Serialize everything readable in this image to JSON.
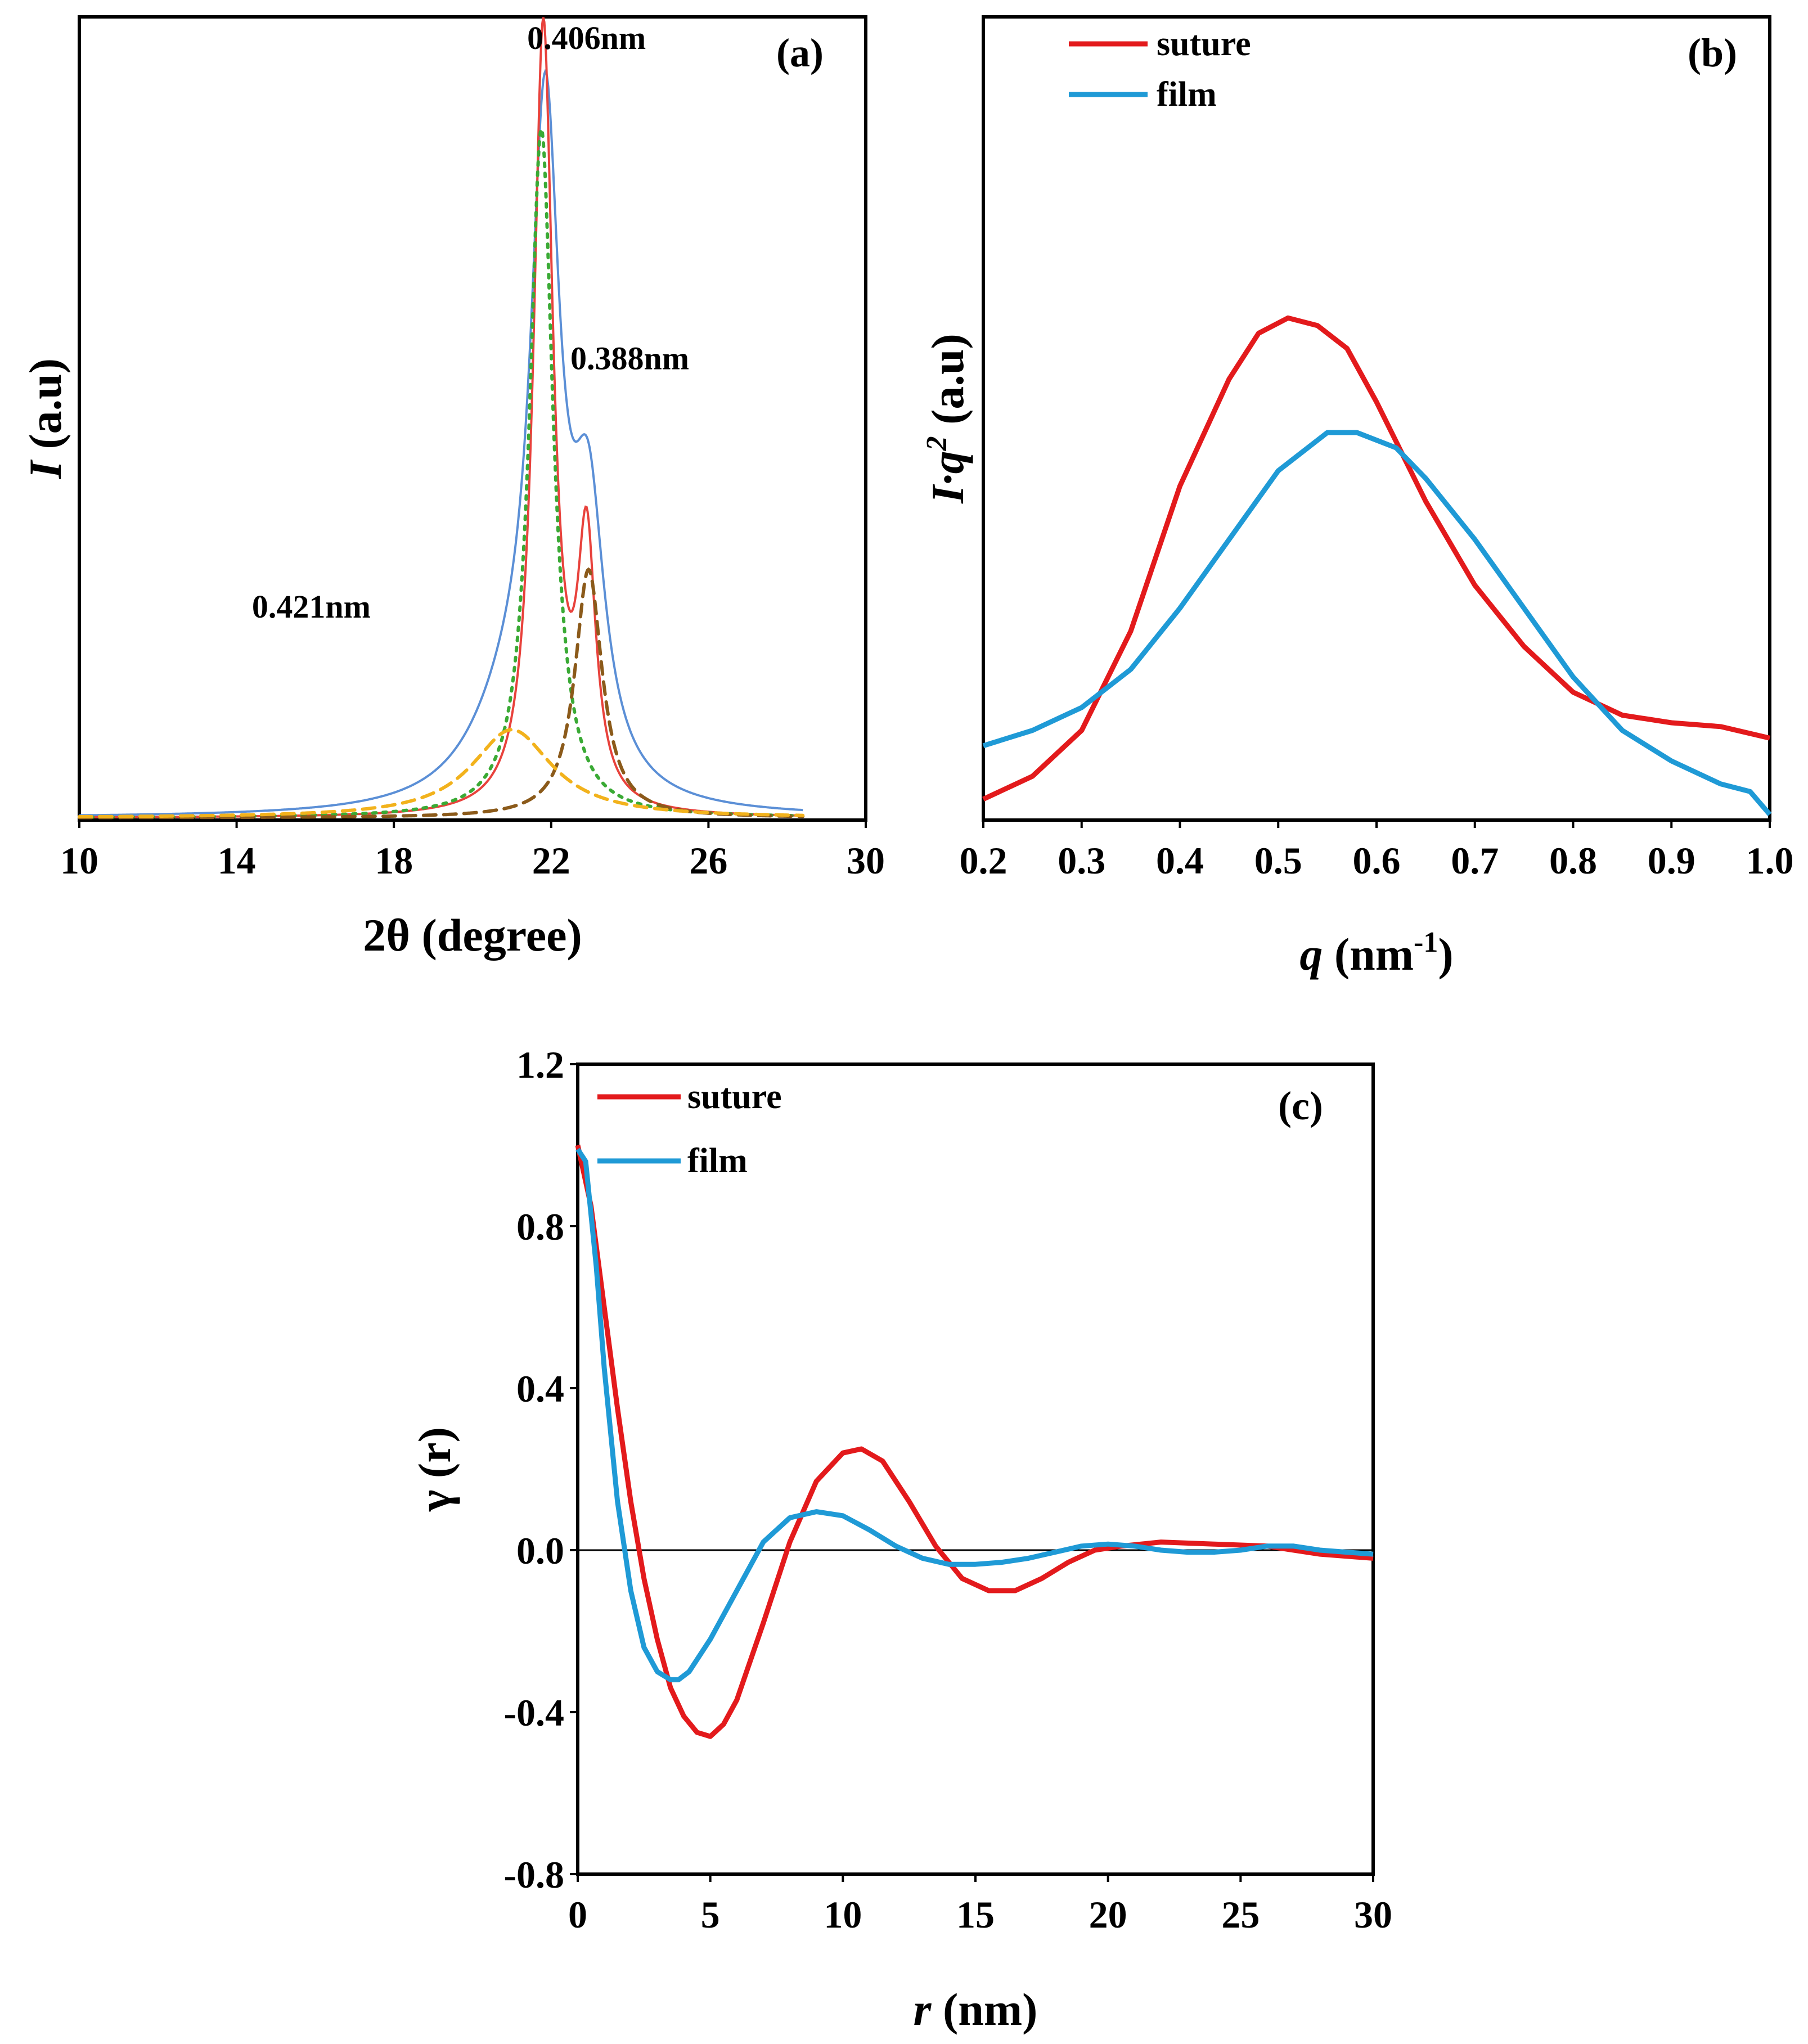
{
  "chart_data": [
    {
      "panel": "(a)",
      "type": "line",
      "xlabel": "2θ (degree)",
      "ylabel_italic": "I",
      "ylabel_rest": " (a.u)",
      "xlim": [
        10,
        30
      ],
      "ylim": [
        0,
        1.0
      ],
      "xticks": [
        "10",
        "14",
        "18",
        "22",
        "26",
        "30"
      ],
      "annotations": [
        {
          "text": "0.406nm",
          "x": 22.9,
          "y": 0.96
        },
        {
          "text": "0.388nm",
          "x": 24.0,
          "y": 0.56
        },
        {
          "text": "0.421nm",
          "x": 15.9,
          "y": 0.25
        }
      ],
      "peaks": [
        {
          "name": "total-envelope",
          "color": "#5b8fd6",
          "style": "solid",
          "components": [
            {
              "center": 21.85,
              "height": 0.8,
              "width": 0.45
            },
            {
              "center": 22.95,
              "height": 0.32,
              "width": 0.5
            },
            {
              "center": 21.0,
              "height": 0.11,
              "width": 1.3
            }
          ]
        },
        {
          "name": "fitted-sum",
          "color": "#e8423c",
          "style": "solid",
          "components": [
            {
              "center": 21.8,
              "height": 0.98,
              "width": 0.3
            },
            {
              "center": 22.9,
              "height": 0.32,
              "width": 0.28
            }
          ]
        },
        {
          "name": "peak-0.406nm",
          "color": "#3aaa35",
          "style": "dotted",
          "components": [
            {
              "center": 21.75,
              "height": 0.86,
              "width": 0.36
            }
          ]
        },
        {
          "name": "peak-0.388nm",
          "color": "#8b5a1a",
          "style": "dashed",
          "components": [
            {
              "center": 22.95,
              "height": 0.31,
              "width": 0.42
            }
          ]
        },
        {
          "name": "peak-0.421nm",
          "color": "#f2b21c",
          "style": "dashed",
          "components": [
            {
              "center": 21.0,
              "height": 0.11,
              "width": 1.25
            }
          ]
        }
      ]
    },
    {
      "panel": "(b)",
      "type": "line",
      "xlabel_italic": "q",
      "xlabel_rest": " (nm",
      "xlabel_sup": "-1",
      "xlabel_end": ")",
      "ylabel_italic": "I·q",
      "ylabel_sup": "2",
      "ylabel_rest": " (a.u)",
      "xlim": [
        0.2,
        1.0
      ],
      "ylim": [
        0,
        1.0
      ],
      "xticks": [
        "0.2",
        "0.3",
        "0.4",
        "0.5",
        "0.6",
        "0.7",
        "0.8",
        "0.9",
        "1.0"
      ],
      "legend": [
        "suture",
        "film"
      ],
      "series": [
        {
          "name": "suture",
          "color": "#e31a1c",
          "x": [
            0.2,
            0.25,
            0.3,
            0.35,
            0.4,
            0.45,
            0.48,
            0.51,
            0.54,
            0.57,
            0.6,
            0.65,
            0.7,
            0.75,
            0.8,
            0.85,
            0.9,
            0.95,
            1.0
          ],
          "y": [
            0.02,
            0.05,
            0.11,
            0.24,
            0.43,
            0.57,
            0.63,
            0.65,
            0.64,
            0.61,
            0.54,
            0.41,
            0.3,
            0.22,
            0.16,
            0.13,
            0.12,
            0.115,
            0.1
          ]
        },
        {
          "name": "film",
          "color": "#1f9ad6",
          "x": [
            0.2,
            0.25,
            0.3,
            0.35,
            0.4,
            0.45,
            0.5,
            0.55,
            0.58,
            0.62,
            0.65,
            0.7,
            0.75,
            0.8,
            0.85,
            0.9,
            0.95,
            0.98,
            1.0
          ],
          "y": [
            0.09,
            0.11,
            0.14,
            0.19,
            0.27,
            0.36,
            0.45,
            0.5,
            0.5,
            0.48,
            0.44,
            0.36,
            0.27,
            0.18,
            0.11,
            0.07,
            0.04,
            0.03,
            0.0
          ]
        }
      ]
    },
    {
      "panel": "(c)",
      "type": "line",
      "xlabel_italic": "r",
      "xlabel_rest": " (nm)",
      "ylabel": "γ (r)",
      "xlim": [
        0,
        30
      ],
      "ylim": [
        -0.8,
        1.2
      ],
      "xticks": [
        "0",
        "5",
        "10",
        "15",
        "20",
        "25",
        "30"
      ],
      "yticks": [
        "-0.8",
        "-0.4",
        "0.0",
        "0.4",
        "0.8",
        "1.2"
      ],
      "legend": [
        "suture",
        "film"
      ],
      "series": [
        {
          "name": "suture",
          "color": "#e31a1c",
          "x": [
            0,
            0.5,
            1,
            1.5,
            2,
            2.5,
            3,
            3.5,
            4,
            4.5,
            5,
            5.5,
            6,
            7,
            8,
            9,
            10,
            10.7,
            11.5,
            12.5,
            13.5,
            14.5,
            15.5,
            16.5,
            17.5,
            18.5,
            19.5,
            20.5,
            22,
            24,
            26,
            28,
            30
          ],
          "y": [
            1.0,
            0.85,
            0.6,
            0.35,
            0.12,
            -0.07,
            -0.22,
            -0.34,
            -0.41,
            -0.45,
            -0.46,
            -0.43,
            -0.37,
            -0.18,
            0.02,
            0.17,
            0.24,
            0.25,
            0.22,
            0.12,
            0.01,
            -0.07,
            -0.1,
            -0.1,
            -0.07,
            -0.03,
            0.0,
            0.01,
            0.02,
            0.015,
            0.01,
            -0.01,
            -0.02
          ]
        },
        {
          "name": "film",
          "color": "#1f9ad6",
          "x": [
            0,
            0.3,
            0.7,
            1,
            1.5,
            2,
            2.5,
            3,
            3.5,
            3.8,
            4.2,
            5,
            6,
            7,
            8,
            9,
            10,
            11,
            12,
            13,
            14,
            15,
            16,
            17,
            18,
            19,
            20,
            21,
            22,
            23,
            24,
            25,
            26,
            27,
            28,
            29,
            30
          ],
          "y": [
            0.99,
            0.96,
            0.7,
            0.45,
            0.12,
            -0.1,
            -0.24,
            -0.3,
            -0.32,
            -0.32,
            -0.3,
            -0.22,
            -0.1,
            0.02,
            0.08,
            0.095,
            0.085,
            0.05,
            0.01,
            -0.02,
            -0.035,
            -0.035,
            -0.03,
            -0.02,
            -0.005,
            0.01,
            0.015,
            0.01,
            0.0,
            -0.005,
            -0.005,
            0.0,
            0.01,
            0.01,
            0.0,
            -0.005,
            -0.01
          ]
        }
      ]
    }
  ]
}
